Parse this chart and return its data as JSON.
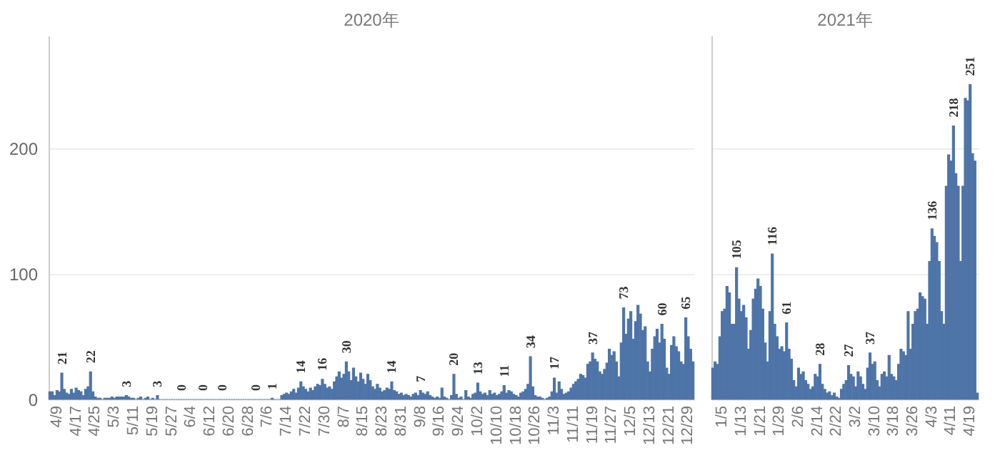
{
  "chart_data": [
    {
      "type": "bar",
      "title": "2020年",
      "color": "#4e74a8",
      "ylim": [
        0,
        290
      ],
      "yticks": [
        0,
        100,
        200
      ],
      "grid": "y",
      "categories": [
        null,
        null,
        null,
        "4/9",
        null,
        null,
        null,
        null,
        null,
        null,
        null,
        "4/17",
        null,
        null,
        null,
        null,
        null,
        null,
        null,
        "4/25",
        null,
        null,
        null,
        null,
        null,
        null,
        null,
        "5/3",
        null,
        null,
        null,
        null,
        null,
        null,
        null,
        "5/11",
        null,
        null,
        null,
        null,
        null,
        null,
        null,
        "5/19",
        null,
        null,
        null,
        null,
        null,
        null,
        null,
        "5/27",
        null,
        null,
        null,
        null,
        null,
        null,
        null,
        "6/4",
        null,
        null,
        null,
        null,
        null,
        null,
        null,
        "6/12",
        null,
        null,
        null,
        null,
        null,
        null,
        null,
        "6/20",
        null,
        null,
        null,
        null,
        null,
        null,
        null,
        "6/28",
        null,
        null,
        null,
        null,
        null,
        null,
        null,
        "7/6",
        null,
        null,
        null,
        null,
        null,
        null,
        null,
        "7/14",
        null,
        null,
        null,
        null,
        null,
        null,
        null,
        "7/22",
        null,
        null,
        null,
        null,
        null,
        null,
        null,
        "7/30",
        null,
        null,
        null,
        null,
        null,
        null,
        null,
        "8/7",
        null,
        null,
        null,
        null,
        null,
        null,
        null,
        "8/15",
        null,
        null,
        null,
        null,
        null,
        null,
        null,
        "8/23",
        null,
        null,
        null,
        null,
        null,
        null,
        null,
        "8/31",
        null,
        null,
        null,
        null,
        null,
        null,
        null,
        "9/8",
        null,
        null,
        null,
        null,
        null,
        null,
        null,
        "9/16",
        null,
        null,
        null,
        null,
        null,
        null,
        null,
        "9/24",
        null,
        null,
        null,
        null,
        null,
        null,
        null,
        "10/2",
        null,
        null,
        null,
        null,
        null,
        null,
        null,
        "10/10",
        null,
        null,
        null,
        null,
        null,
        null,
        null,
        "10/18",
        null,
        null,
        null,
        null,
        null,
        null,
        null,
        "10/26",
        null,
        null,
        null,
        null,
        null,
        null,
        null,
        "11/3",
        null,
        null,
        null,
        null,
        null,
        null,
        null,
        "11/11",
        null,
        null,
        null,
        null,
        null,
        null,
        null,
        "11/19",
        null,
        null,
        null,
        null,
        null,
        null,
        null,
        "11/27",
        null,
        null,
        null,
        null,
        null,
        null,
        null,
        "12/5",
        null,
        null,
        null,
        null,
        null,
        null,
        null,
        "12/13",
        null,
        null,
        null,
        null,
        null,
        null,
        null,
        "12/21",
        null,
        null,
        null,
        null,
        null,
        null,
        null,
        "12/29",
        null,
        null
      ],
      "values": [
        6,
        6,
        3,
        7,
        6,
        21,
        8,
        5,
        4,
        8,
        5,
        9,
        7,
        6,
        3,
        8,
        10,
        22,
        6,
        2,
        1,
        1,
        0,
        1,
        1,
        1,
        2,
        1,
        2,
        2,
        2,
        2,
        3,
        2,
        1,
        1,
        0,
        1,
        2,
        0,
        1,
        2,
        0,
        1,
        0,
        3,
        0,
        0,
        0,
        0,
        0,
        0,
        0,
        0,
        0,
        0,
        0,
        0,
        0,
        0,
        0,
        0,
        0,
        0,
        0,
        0,
        0,
        0,
        0,
        0,
        0,
        0,
        0,
        0,
        0,
        0,
        0,
        0,
        0,
        0,
        0,
        0,
        0,
        0,
        0,
        0,
        0,
        0,
        0,
        0,
        0,
        0,
        0,
        1,
        0,
        0,
        0,
        3,
        4,
        5,
        4,
        6,
        8,
        5,
        9,
        14,
        10,
        8,
        6,
        9,
        7,
        10,
        12,
        11,
        16,
        12,
        9,
        10,
        8,
        14,
        18,
        22,
        17,
        20,
        30,
        22,
        15,
        25,
        18,
        14,
        21,
        16,
        12,
        20,
        15,
        10,
        8,
        12,
        9,
        6,
        7,
        9,
        8,
        14,
        7,
        6,
        4,
        5,
        3,
        4,
        3,
        2,
        4,
        5,
        3,
        7,
        5,
        4,
        6,
        3,
        2,
        1,
        2,
        1,
        9,
        2,
        1,
        0,
        3,
        20,
        4,
        1,
        2,
        0,
        7,
        2,
        1,
        4,
        5,
        13,
        6,
        4,
        5,
        3,
        7,
        4,
        5,
        3,
        4,
        6,
        11,
        5,
        7,
        6,
        4,
        3,
        2,
        5,
        6,
        8,
        12,
        34,
        10,
        3,
        2,
        2,
        1,
        0,
        1,
        2,
        6,
        17,
        5,
        14,
        8,
        4,
        5,
        6,
        9,
        12,
        14,
        16,
        20,
        19,
        17,
        28,
        30,
        37,
        32,
        30,
        22,
        20,
        24,
        29,
        40,
        35,
        38,
        30,
        18,
        45,
        73,
        52,
        64,
        70,
        48,
        62,
        75,
        68,
        55,
        58,
        30,
        22,
        40,
        50,
        56,
        45,
        60,
        48,
        25,
        20,
        43,
        50,
        42,
        38,
        30,
        28,
        65,
        50,
        40,
        30
      ],
      "value_labels": [
        null,
        null,
        null,
        null,
        null,
        "21",
        null,
        null,
        null,
        null,
        null,
        null,
        null,
        null,
        null,
        null,
        null,
        "22",
        null,
        null,
        null,
        null,
        null,
        null,
        null,
        null,
        null,
        null,
        null,
        null,
        null,
        null,
        "3",
        null,
        null,
        null,
        null,
        null,
        null,
        null,
        null,
        null,
        null,
        null,
        null,
        "3",
        null,
        null,
        null,
        null,
        null,
        null,
        null,
        null,
        null,
        "0",
        null,
        null,
        null,
        null,
        null,
        null,
        null,
        null,
        "0",
        null,
        null,
        null,
        null,
        null,
        null,
        null,
        "0",
        null,
        null,
        null,
        null,
        null,
        null,
        null,
        null,
        null,
        null,
        null,
        null,
        null,
        "0",
        null,
        null,
        null,
        null,
        null,
        null,
        "1",
        null,
        null,
        null,
        null,
        null,
        null,
        null,
        null,
        null,
        null,
        null,
        "14",
        null,
        null,
        null,
        null,
        null,
        null,
        null,
        null,
        "16",
        null,
        null,
        null,
        null,
        null,
        null,
        null,
        null,
        null,
        "30",
        null,
        null,
        null,
        null,
        null,
        null,
        null,
        null,
        null,
        null,
        null,
        null,
        null,
        null,
        null,
        null,
        null,
        null,
        "14",
        null,
        null,
        null,
        null,
        null,
        null,
        null,
        null,
        null,
        null,
        null,
        "7",
        null,
        null,
        null,
        null,
        null,
        null,
        null,
        null,
        null,
        null,
        null,
        null,
        null,
        "20",
        null,
        null,
        null,
        null,
        null,
        null,
        null,
        null,
        null,
        "13",
        null,
        null,
        null,
        null,
        null,
        null,
        null,
        null,
        null,
        null,
        "11",
        null,
        null,
        null,
        null,
        null,
        null,
        null,
        null,
        null,
        null,
        "34",
        null,
        null,
        null,
        null,
        null,
        null,
        null,
        null,
        null,
        "17",
        null,
        null,
        null,
        null,
        null,
        null,
        null,
        null,
        null,
        null,
        null,
        null,
        null,
        null,
        null,
        "37",
        null,
        null,
        null,
        null,
        null,
        null,
        null,
        null,
        null,
        null,
        null,
        null,
        "73",
        null,
        null,
        null,
        null,
        null,
        null,
        null,
        null,
        null,
        null,
        null,
        null,
        null,
        null,
        null,
        "60",
        null,
        null,
        null,
        null,
        null,
        null,
        null,
        null,
        null,
        "65",
        null,
        null,
        null
      ]
    },
    {
      "type": "bar",
      "title": "2021年",
      "color": "#4e74a8",
      "ylim": [
        0,
        290
      ],
      "yticks": [
        0,
        100,
        200
      ],
      "grid": "y",
      "tick_labels": "x",
      "categories": [
        null,
        null,
        null,
        null,
        "1/5",
        null,
        null,
        null,
        null,
        null,
        null,
        null,
        "1/13",
        null,
        null,
        null,
        null,
        null,
        null,
        null,
        "1/21",
        null,
        null,
        null,
        null,
        null,
        null,
        null,
        "1/29",
        null,
        null,
        null,
        null,
        null,
        null,
        null,
        "2/6",
        null,
        null,
        null,
        null,
        null,
        null,
        null,
        "2/14",
        null,
        null,
        null,
        null,
        null,
        null,
        null,
        "2/22",
        null,
        null,
        null,
        null,
        null,
        null,
        null,
        "3/2",
        null,
        null,
        null,
        null,
        null,
        null,
        null,
        "3/10",
        null,
        null,
        null,
        null,
        null,
        null,
        null,
        "3/18",
        null,
        null,
        null,
        null,
        null,
        null,
        null,
        "3/26",
        null,
        null,
        null,
        null,
        null,
        null,
        null,
        "4/3",
        null,
        null,
        null,
        null,
        null,
        null,
        null,
        "4/11",
        null,
        null,
        null,
        null,
        null,
        null,
        null,
        "4/19",
        null,
        null,
        null
      ],
      "values": [
        25,
        30,
        28,
        50,
        70,
        72,
        90,
        85,
        60,
        60,
        105,
        80,
        70,
        75,
        65,
        40,
        55,
        80,
        88,
        96,
        90,
        72,
        45,
        30,
        70,
        116,
        60,
        50,
        40,
        42,
        38,
        61,
        40,
        32,
        15,
        10,
        25,
        20,
        22,
        15,
        12,
        8,
        10,
        20,
        18,
        28,
        12,
        8,
        5,
        6,
        3,
        5,
        2,
        1,
        8,
        12,
        15,
        27,
        20,
        18,
        10,
        22,
        18,
        12,
        8,
        25,
        37,
        28,
        30,
        15,
        10,
        20,
        22,
        18,
        35,
        20,
        18,
        15,
        28,
        40,
        38,
        35,
        70,
        40,
        60,
        70,
        72,
        85,
        82,
        80,
        60,
        110,
        136,
        130,
        125,
        110,
        70,
        60,
        170,
        195,
        190,
        218,
        180,
        170,
        110,
        170,
        240,
        238,
        251,
        196,
        190,
        5
      ],
      "value_labels": [
        null,
        null,
        null,
        null,
        null,
        null,
        null,
        null,
        null,
        null,
        "105",
        null,
        null,
        null,
        null,
        null,
        null,
        null,
        null,
        null,
        null,
        null,
        null,
        null,
        null,
        "116",
        null,
        null,
        null,
        null,
        null,
        "61",
        null,
        null,
        null,
        null,
        null,
        null,
        null,
        null,
        null,
        null,
        null,
        null,
        null,
        "28",
        null,
        null,
        null,
        null,
        null,
        null,
        null,
        null,
        null,
        null,
        null,
        "27",
        null,
        null,
        null,
        null,
        null,
        null,
        null,
        null,
        "37",
        null,
        null,
        null,
        null,
        null,
        null,
        null,
        null,
        null,
        null,
        null,
        null,
        null,
        null,
        null,
        null,
        null,
        null,
        null,
        null,
        null,
        null,
        null,
        null,
        null,
        "136",
        null,
        null,
        null,
        null,
        null,
        null,
        null,
        null,
        "218",
        null,
        null,
        null,
        null,
        null,
        null,
        "251",
        null,
        null,
        null
      ]
    }
  ]
}
